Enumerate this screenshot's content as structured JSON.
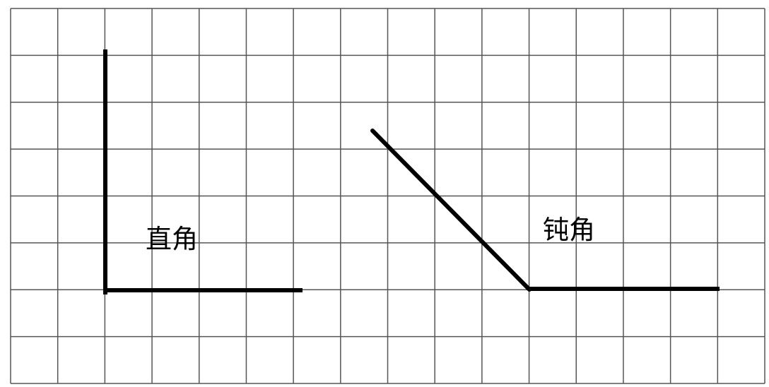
{
  "grid": {
    "columns": 16,
    "rows": 8,
    "line_color": "#555555"
  },
  "angles": [
    {
      "label": "直角",
      "kind": "right",
      "color": "#000000"
    },
    {
      "label": "钝角",
      "kind": "obtuse",
      "color": "#000000"
    }
  ]
}
